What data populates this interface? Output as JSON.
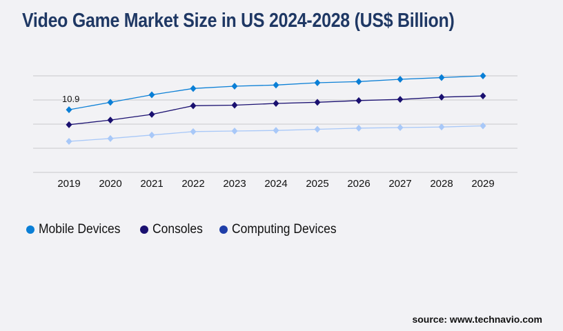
{
  "title": "Video Game Market Size in US 2024-2028 (US$ Billion)",
  "source": "source: www.technavio.com",
  "chart_data": {
    "type": "line",
    "title": "Video Game Market Size in US 2024-2028 (US$ Billion)",
    "x": [
      "2019",
      "2020",
      "2021",
      "2022",
      "2023",
      "2024",
      "2025",
      "2026",
      "2027",
      "2028",
      "2029"
    ],
    "ylim": [
      0,
      16.8
    ],
    "grid": true,
    "legend_position": "bottom-left",
    "series": [
      {
        "name": "Mobile Devices",
        "color": "#0a7fd6",
        "values": [
          10.9,
          12.2,
          13.5,
          14.6,
          15.0,
          15.2,
          15.6,
          15.8,
          16.2,
          16.5,
          16.8
        ]
      },
      {
        "name": "Consoles",
        "color": "#1a1070",
        "values": [
          8.3,
          9.1,
          10.1,
          11.6,
          11.7,
          12.0,
          12.2,
          12.5,
          12.7,
          13.1,
          13.3
        ]
      },
      {
        "name": "Computing Devices",
        "color": "#a8c8f8",
        "legend_color": "#1f3ea8",
        "values": [
          5.4,
          5.9,
          6.5,
          7.1,
          7.2,
          7.3,
          7.5,
          7.7,
          7.8,
          7.9,
          8.1
        ]
      }
    ],
    "annotations": [
      {
        "series": "Mobile Devices",
        "x": "2019",
        "label": "10.9"
      }
    ]
  }
}
